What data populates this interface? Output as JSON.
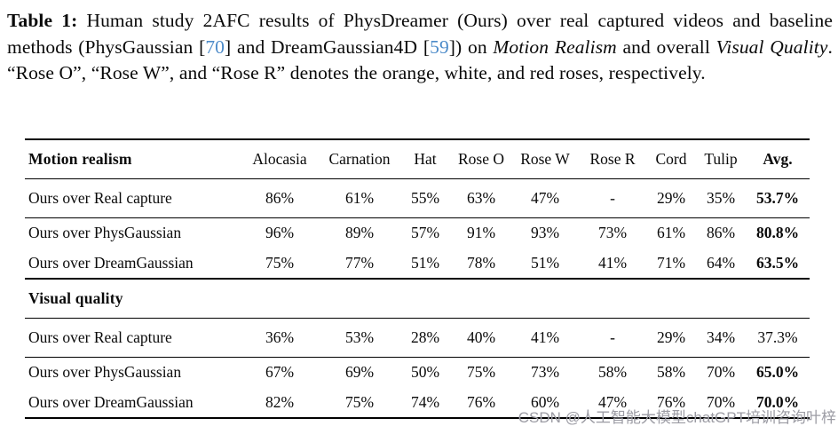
{
  "caption": {
    "segments": [
      {
        "text": "Table 1:",
        "style": "bold",
        "name": "caption-label"
      },
      {
        "text": " Human study 2AFC results of PhysDreamer (Ours) over real captured videos and baseline methods (PhysGaussian [",
        "style": "normal"
      },
      {
        "text": "70",
        "style": "cite",
        "name": "citation-70"
      },
      {
        "text": "] and DreamGaussian4D [",
        "style": "normal"
      },
      {
        "text": "59",
        "style": "cite",
        "name": "citation-59"
      },
      {
        "text": "]) on ",
        "style": "normal"
      },
      {
        "text": "Motion Realism",
        "style": "italic"
      },
      {
        "text": " and overall ",
        "style": "normal"
      },
      {
        "text": "Visual Quality",
        "style": "italic"
      },
      {
        "text": ". “Rose O”, “Rose W”, and “Rose R” denotes the orange, white, and red roses, respectively.",
        "style": "normal"
      }
    ]
  },
  "table": {
    "columns": [
      "Alocasia",
      "Carnation",
      "Hat",
      "Rose O",
      "Rose W",
      "Rose R",
      "Cord",
      "Tulip"
    ],
    "avg_label": "Avg.",
    "sections": [
      {
        "title": "Motion realism",
        "show_columns": true,
        "groups": [
          [
            {
              "label": "Ours over Real capture",
              "values": [
                "86%",
                "61%",
                "55%",
                "63%",
                "47%",
                "-",
                "29%",
                "35%"
              ],
              "avg": "53.7%",
              "avg_bold": true
            }
          ],
          [
            {
              "label": "Ours over PhysGaussian",
              "values": [
                "96%",
                "89%",
                "57%",
                "91%",
                "93%",
                "73%",
                "61%",
                "86%"
              ],
              "avg": "80.8%",
              "avg_bold": true
            },
            {
              "label": "Ours over DreamGaussian",
              "values": [
                "75%",
                "77%",
                "51%",
                "78%",
                "51%",
                "41%",
                "71%",
                "64%"
              ],
              "avg": "63.5%",
              "avg_bold": true
            }
          ]
        ]
      },
      {
        "title": "Visual quality",
        "show_columns": false,
        "groups": [
          [
            {
              "label": "Ours over Real capture",
              "values": [
                "36%",
                "53%",
                "28%",
                "40%",
                "41%",
                "-",
                "29%",
                "34%"
              ],
              "avg": "37.3%",
              "avg_bold": false
            }
          ],
          [
            {
              "label": "Ours over PhysGaussian",
              "values": [
                "67%",
                "69%",
                "50%",
                "75%",
                "73%",
                "58%",
                "58%",
                "70%"
              ],
              "avg": "65.0%",
              "avg_bold": true
            },
            {
              "label": "Ours over DreamGaussian",
              "values": [
                "82%",
                "75%",
                "74%",
                "76%",
                "60%",
                "47%",
                "76%",
                "70%"
              ],
              "avg": "70.0%",
              "avg_bold": true
            }
          ]
        ]
      }
    ]
  },
  "watermark": "CSDN @人工智能大模型chatGPT培训咨询叶梓",
  "colors": {
    "citation_blue": "#4d8bc9",
    "watermark_gray": "#9c9ca4",
    "rule_black": "#000000"
  }
}
